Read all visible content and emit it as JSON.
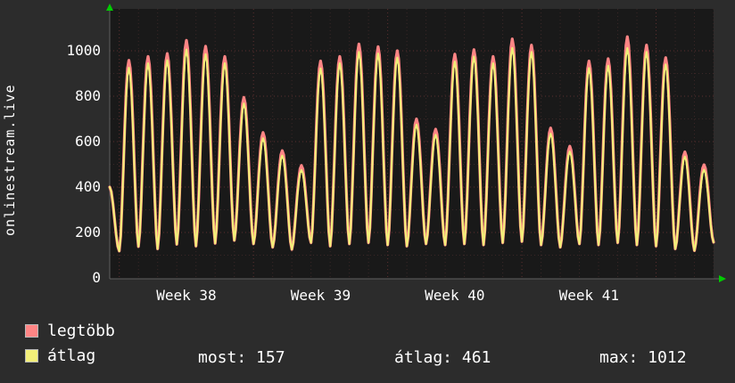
{
  "side_label": "onlinestream.live",
  "legend": {
    "series1": "legtöbb",
    "series2": "átlag"
  },
  "stats": {
    "most": "most: 157",
    "atlag": "átlag: 461",
    "max": "max: 1012"
  },
  "colors": {
    "bg": "#2c2c2c",
    "plot_bg": "#191919",
    "text": "#ffffff",
    "arrow": "#00cc00",
    "axis": "#606060",
    "grid_major": "#5c3030",
    "grid_minor": "#3a2727",
    "series1": "#ff8585",
    "series2": "#f2ef79"
  },
  "chart_data": {
    "type": "line",
    "title": "",
    "ylabel": "onlinestream.live",
    "xlabel": "",
    "yticks": [
      0,
      200,
      400,
      600,
      800,
      1000
    ],
    "ylim": [
      0,
      1180
    ],
    "x_tick_labels": [
      "Week 38",
      "Week 39",
      "Week 40",
      "Week 41"
    ],
    "week_label_centers_day": [
      3.5,
      10.5,
      17.5,
      24.5
    ],
    "grid": "dotted",
    "legend_position": "bottom-left",
    "start_value": 400,
    "troughs": [
      118,
      138,
      128,
      148,
      140,
      152,
      165,
      150,
      135,
      125,
      155,
      140,
      150,
      155,
      145,
      140,
      150,
      145,
      150,
      145,
      155,
      160,
      145,
      135,
      150,
      145,
      155,
      145,
      140,
      128,
      120,
      157
    ],
    "series": [
      {
        "name": "legtöbb",
        "color": "#ff8585",
        "daily_peaks": [
          958,
          975,
          988,
          1046,
          1020,
          975,
          795,
          640,
          560,
          495,
          955,
          975,
          1030,
          1018,
          1000,
          700,
          655,
          985,
          1005,
          975,
          1052,
          1025,
          660,
          580,
          955,
          965,
          1062,
          1025,
          970,
          555,
          498
        ]
      },
      {
        "name": "átlag",
        "color": "#f2ef79",
        "daily_peaks": [
          925,
          945,
          958,
          1005,
          985,
          945,
          768,
          615,
          538,
          475,
          922,
          945,
          995,
          988,
          970,
          675,
          630,
          952,
          975,
          945,
          1012,
          995,
          635,
          556,
          924,
          934,
          1012,
          995,
          940,
          534,
          476
        ]
      }
    ],
    "stats": {
      "most": 157,
      "atlag": 461,
      "max": 1012
    }
  }
}
